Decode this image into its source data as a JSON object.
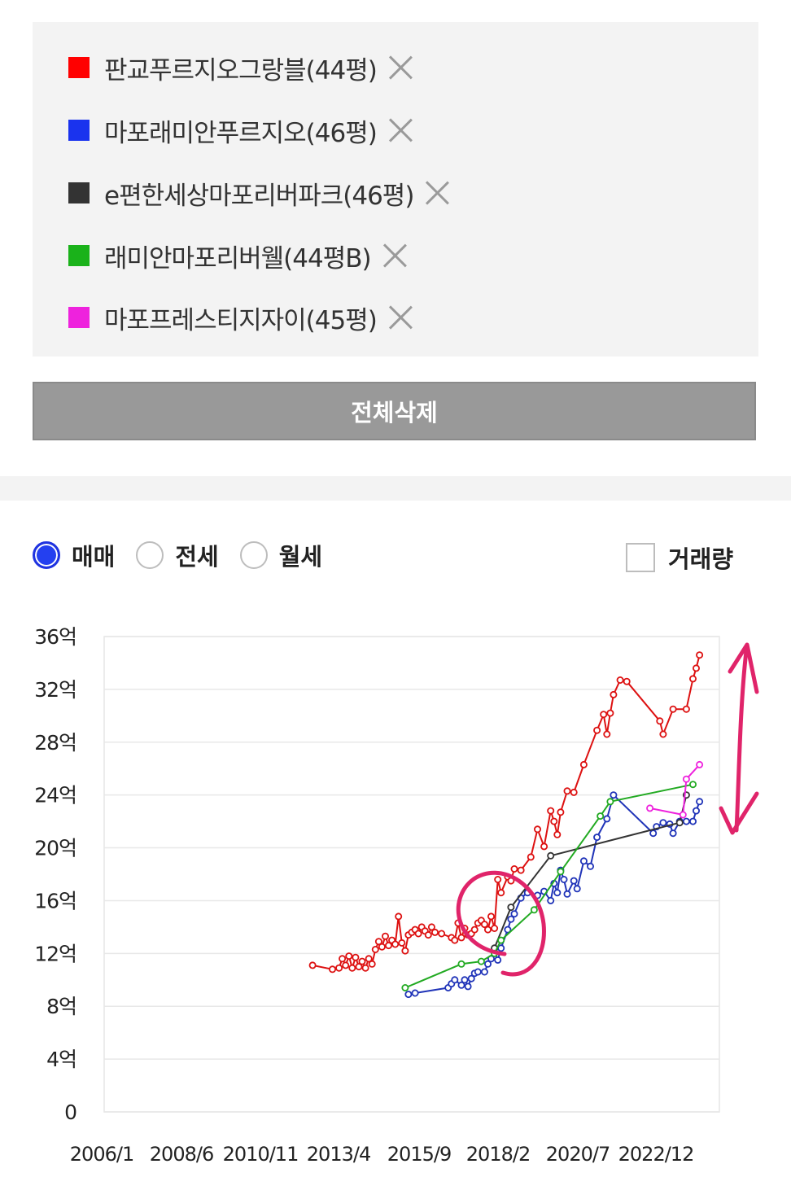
{
  "legend": {
    "items": [
      {
        "label": "판교푸르지오그랑블(44평)",
        "color": "#ff0000"
      },
      {
        "label": "마포래미안푸르지오(46평)",
        "color": "#1a33ee"
      },
      {
        "label": "e편한세상마포리버파크(46평)",
        "color": "#333333"
      },
      {
        "label": "래미안마포리버웰(44평B)",
        "color": "#1ab21a"
      },
      {
        "label": "마포프레스티지자이(45평)",
        "color": "#ee22dd"
      }
    ]
  },
  "delete_all_label": "전체삭제",
  "trade_types": [
    {
      "label": "매매",
      "selected": true
    },
    {
      "label": "전세",
      "selected": false
    },
    {
      "label": "월세",
      "selected": false
    }
  ],
  "volume_toggle": {
    "label": "거래량",
    "checked": false
  },
  "chart_data": {
    "type": "line",
    "ylim": [
      0,
      36
    ],
    "y_ticks": [
      "0",
      "4억",
      "8억",
      "12억",
      "16억",
      "20억",
      "24억",
      "28억",
      "32억",
      "36억"
    ],
    "x_ticks": [
      "2006/1",
      "2008/6",
      "2010/11",
      "2013/4",
      "2015/9",
      "2018/2",
      "2020/7",
      "2022/12"
    ],
    "xlim": [
      2006.0,
      2024.6
    ],
    "grid": true,
    "annotation_color": "#e0246a",
    "series": [
      {
        "name": "판교푸르지오그랑블(44평)",
        "color": "#dd1111",
        "points": [
          [
            2012.3,
            11.1
          ],
          [
            2012.9,
            10.8
          ],
          [
            2013.1,
            10.9
          ],
          [
            2013.2,
            11.6
          ],
          [
            2013.3,
            11.1
          ],
          [
            2013.4,
            11.8
          ],
          [
            2013.5,
            10.9
          ],
          [
            2013.6,
            11.7
          ],
          [
            2013.7,
            11.0
          ],
          [
            2013.8,
            11.4
          ],
          [
            2013.9,
            10.9
          ],
          [
            2014.0,
            11.6
          ],
          [
            2014.1,
            11.2
          ],
          [
            2014.2,
            12.3
          ],
          [
            2014.3,
            12.9
          ],
          [
            2014.4,
            12.5
          ],
          [
            2014.5,
            13.3
          ],
          [
            2014.6,
            12.6
          ],
          [
            2014.7,
            13.0
          ],
          [
            2014.8,
            12.7
          ],
          [
            2014.9,
            14.8
          ],
          [
            2015.0,
            12.8
          ],
          [
            2015.1,
            12.2
          ],
          [
            2015.2,
            13.4
          ],
          [
            2015.3,
            13.6
          ],
          [
            2015.4,
            13.8
          ],
          [
            2015.5,
            13.5
          ],
          [
            2015.6,
            14.0
          ],
          [
            2015.7,
            13.7
          ],
          [
            2015.8,
            13.4
          ],
          [
            2015.9,
            14.0
          ],
          [
            2016.0,
            13.6
          ],
          [
            2016.2,
            13.5
          ],
          [
            2016.5,
            13.2
          ],
          [
            2016.6,
            13.0
          ],
          [
            2016.7,
            14.3
          ],
          [
            2016.8,
            13.2
          ],
          [
            2016.9,
            13.9
          ],
          [
            2017.0,
            13.4
          ],
          [
            2017.1,
            13.5
          ],
          [
            2017.2,
            13.8
          ],
          [
            2017.3,
            14.3
          ],
          [
            2017.4,
            14.5
          ],
          [
            2017.5,
            14.2
          ],
          [
            2017.6,
            13.8
          ],
          [
            2017.7,
            14.8
          ],
          [
            2017.8,
            13.9
          ],
          [
            2017.9,
            17.6
          ],
          [
            2018.0,
            16.6
          ],
          [
            2018.2,
            17.8
          ],
          [
            2018.3,
            17.5
          ],
          [
            2018.4,
            18.4
          ],
          [
            2018.6,
            18.3
          ],
          [
            2018.9,
            19.3
          ],
          [
            2019.1,
            21.4
          ],
          [
            2019.3,
            20.1
          ],
          [
            2019.5,
            22.8
          ],
          [
            2019.6,
            22.0
          ],
          [
            2019.7,
            21.0
          ],
          [
            2019.8,
            22.7
          ],
          [
            2020.0,
            24.3
          ],
          [
            2020.2,
            24.2
          ],
          [
            2020.5,
            26.3
          ],
          [
            2020.9,
            28.9
          ],
          [
            2021.1,
            30.1
          ],
          [
            2021.2,
            28.6
          ],
          [
            2021.3,
            30.2
          ],
          [
            2021.4,
            31.6
          ],
          [
            2021.6,
            32.7
          ],
          [
            2021.8,
            32.6
          ],
          [
            2022.8,
            29.6
          ],
          [
            2022.9,
            28.6
          ],
          [
            2023.2,
            30.5
          ],
          [
            2023.6,
            30.5
          ],
          [
            2023.8,
            32.8
          ],
          [
            2023.9,
            33.6
          ],
          [
            2024.0,
            34.6
          ]
        ]
      },
      {
        "name": "마포래미안푸르지오(46평)",
        "color": "#1f33b8",
        "points": [
          [
            2015.2,
            8.9
          ],
          [
            2015.4,
            9.0
          ],
          [
            2016.4,
            9.4
          ],
          [
            2016.5,
            9.7
          ],
          [
            2016.6,
            10.0
          ],
          [
            2016.8,
            9.6
          ],
          [
            2016.9,
            10.0
          ],
          [
            2017.0,
            9.5
          ],
          [
            2017.1,
            10.1
          ],
          [
            2017.2,
            10.5
          ],
          [
            2017.3,
            10.6
          ],
          [
            2017.5,
            10.6
          ],
          [
            2017.6,
            11.2
          ],
          [
            2017.7,
            11.6
          ],
          [
            2017.8,
            12.1
          ],
          [
            2017.9,
            11.5
          ],
          [
            2018.0,
            12.4
          ],
          [
            2018.2,
            13.8
          ],
          [
            2018.3,
            14.6
          ],
          [
            2018.4,
            15.0
          ],
          [
            2018.6,
            16.2
          ],
          [
            2018.8,
            16.6
          ],
          [
            2019.1,
            16.4
          ],
          [
            2019.3,
            16.7
          ],
          [
            2019.5,
            16.0
          ],
          [
            2019.6,
            17.3
          ],
          [
            2019.7,
            16.6
          ],
          [
            2019.8,
            18.3
          ],
          [
            2019.9,
            17.6
          ],
          [
            2020.0,
            16.5
          ],
          [
            2020.2,
            17.5
          ],
          [
            2020.3,
            16.9
          ],
          [
            2020.5,
            19.0
          ],
          [
            2020.7,
            18.6
          ],
          [
            2020.9,
            20.8
          ],
          [
            2021.2,
            22.2
          ],
          [
            2021.4,
            24.0
          ],
          [
            2022.6,
            21.1
          ],
          [
            2022.7,
            21.6
          ],
          [
            2022.9,
            21.9
          ],
          [
            2023.1,
            21.8
          ],
          [
            2023.2,
            21.1
          ],
          [
            2023.4,
            22.0
          ],
          [
            2023.6,
            22.0
          ],
          [
            2023.8,
            22.0
          ],
          [
            2023.9,
            22.8
          ],
          [
            2024.0,
            23.5
          ]
        ]
      },
      {
        "name": "e편한세상마포리버파크(46평)",
        "color": "#333333",
        "points": [
          [
            2017.8,
            12.4
          ],
          [
            2018.3,
            15.5
          ],
          [
            2019.5,
            19.4
          ],
          [
            2023.4,
            21.9
          ],
          [
            2023.6,
            24.0
          ]
        ]
      },
      {
        "name": "래미안마포리버웰(44평B)",
        "color": "#22aa22",
        "points": [
          [
            2015.1,
            9.4
          ],
          [
            2016.8,
            11.2
          ],
          [
            2017.4,
            11.4
          ],
          [
            2017.8,
            12.0
          ],
          [
            2018.0,
            13.0
          ],
          [
            2019.0,
            15.3
          ],
          [
            2019.8,
            18.2
          ],
          [
            2021.0,
            22.4
          ],
          [
            2021.3,
            23.5
          ],
          [
            2023.8,
            24.8
          ]
        ]
      },
      {
        "name": "마포프레스티지자이(45평)",
        "color": "#ee22dd",
        "points": [
          [
            2022.5,
            23.0
          ],
          [
            2023.5,
            22.5
          ],
          [
            2023.6,
            25.2
          ],
          [
            2024.0,
            26.3
          ]
        ]
      }
    ]
  }
}
